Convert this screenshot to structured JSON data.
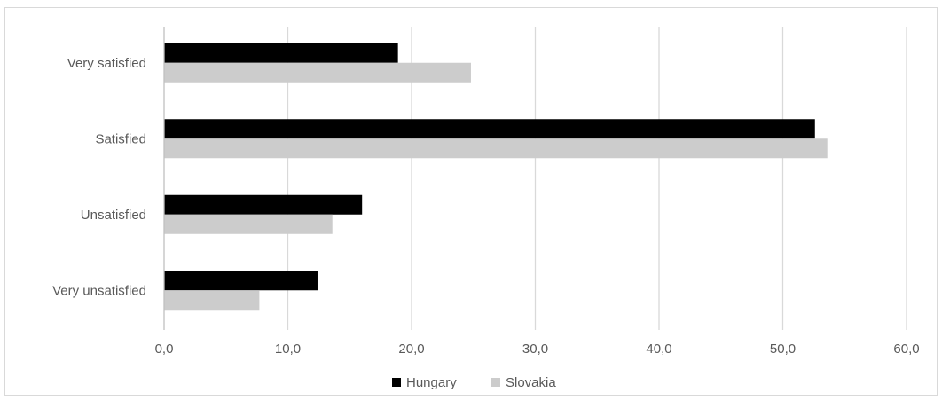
{
  "chart_data": {
    "type": "bar",
    "orientation": "horizontal",
    "categories": [
      "Very satisfied",
      "Satisfied",
      "Unsatisfied",
      "Very unsatisfied"
    ],
    "series": [
      {
        "name": "Hungary",
        "color": "#000000",
        "values": [
          18.9,
          52.6,
          16.0,
          12.4
        ]
      },
      {
        "name": "Slovakia",
        "color": "#cccccc",
        "values": [
          24.8,
          53.6,
          13.6,
          7.7
        ]
      }
    ],
    "xlim": [
      0,
      60
    ],
    "xticks": [
      "0,0",
      "10,0",
      "20,0",
      "30,0",
      "40,0",
      "50,0",
      "60,0"
    ],
    "grid": "vertical",
    "legend": "bottom"
  }
}
